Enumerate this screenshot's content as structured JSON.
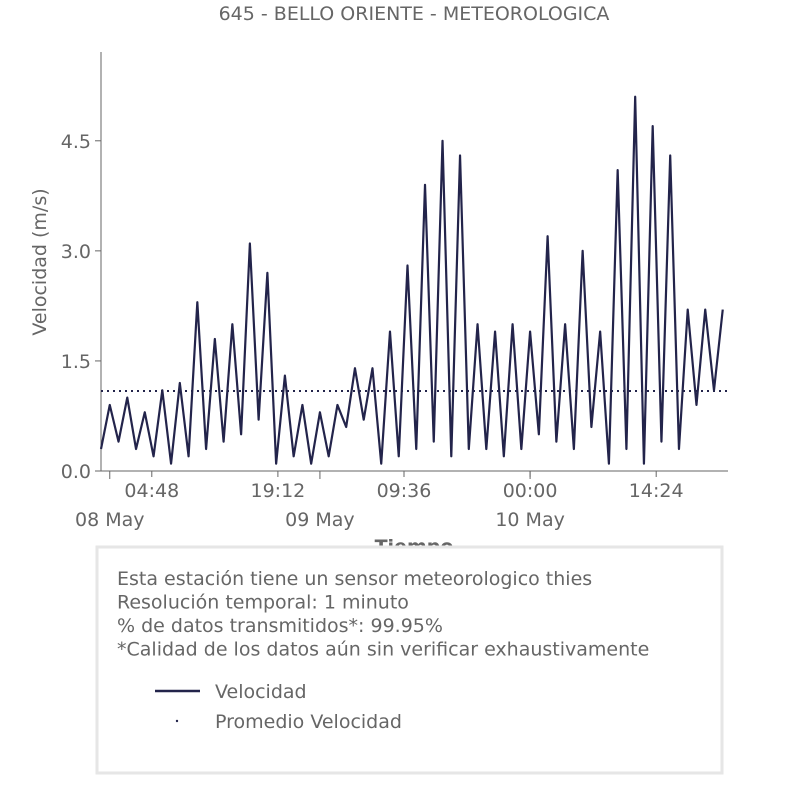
{
  "chart_data": {
    "type": "line",
    "title": "645 - BELLO ORIENTE - METEOROLOGICA",
    "xlabel": "Tiempo",
    "ylabel": "Velocidad (m/s)",
    "x": [
      "07 May 23:00",
      "08 May 00:00",
      "08 May 01:00",
      "08 May 02:00",
      "08 May 03:00",
      "08 May 04:00",
      "08 May 05:00",
      "08 May 06:00",
      "08 May 07:00",
      "08 May 08:00",
      "08 May 09:00",
      "08 May 10:00",
      "08 May 11:00",
      "08 May 12:00",
      "08 May 13:00",
      "08 May 14:00",
      "08 May 15:00",
      "08 May 16:00",
      "08 May 17:00",
      "08 May 18:00",
      "08 May 19:00",
      "08 May 20:00",
      "08 May 21:00",
      "08 May 22:00",
      "08 May 23:00",
      "09 May 00:00",
      "09 May 01:00",
      "09 May 02:00",
      "09 May 03:00",
      "09 May 04:00",
      "09 May 05:00",
      "09 May 06:00",
      "09 May 07:00",
      "09 May 08:00",
      "09 May 09:00",
      "09 May 10:00",
      "09 May 11:00",
      "09 May 12:00",
      "09 May 13:00",
      "09 May 14:00",
      "09 May 15:00",
      "09 May 16:00",
      "09 May 17:00",
      "09 May 18:00",
      "09 May 19:00",
      "09 May 20:00",
      "09 May 21:00",
      "09 May 22:00",
      "09 May 23:00",
      "10 May 00:00",
      "10 May 01:00",
      "10 May 02:00",
      "10 May 03:00",
      "10 May 04:00",
      "10 May 05:00",
      "10 May 06:00",
      "10 May 07:00",
      "10 May 08:00",
      "10 May 09:00",
      "10 May 10:00",
      "10 May 11:00",
      "10 May 12:00",
      "10 May 13:00",
      "10 May 14:00",
      "10 May 15:00",
      "10 May 16:00",
      "10 May 17:00",
      "10 May 18:00",
      "10 May 19:00",
      "10 May 20:00",
      "10 May 21:00",
      "10 May 22:00"
    ],
    "series": [
      {
        "name": "Velocidad",
        "color": "#23244b",
        "values": [
          0.3,
          0.9,
          0.4,
          1.0,
          0.3,
          0.8,
          0.2,
          1.1,
          0.1,
          1.2,
          0.2,
          2.3,
          0.3,
          1.8,
          0.4,
          2.0,
          0.5,
          3.1,
          0.7,
          2.7,
          0.1,
          1.3,
          0.2,
          0.9,
          0.1,
          0.8,
          0.2,
          0.9,
          0.6,
          1.4,
          0.7,
          1.4,
          0.1,
          1.9,
          0.2,
          2.8,
          0.3,
          3.9,
          0.4,
          4.5,
          0.2,
          4.3,
          0.3,
          2.0,
          0.3,
          1.9,
          0.2,
          2.0,
          0.3,
          1.9,
          0.5,
          3.2,
          0.4,
          2.0,
          0.3,
          3.0,
          0.6,
          1.9,
          0.1,
          4.1,
          0.3,
          5.1,
          0.1,
          4.7,
          0.4,
          4.3,
          0.3,
          2.2,
          0.9,
          2.2,
          1.1,
          2.2
        ]
      }
    ],
    "mean_line": {
      "name": "Promedio Velocidad",
      "value": 1.09,
      "color": "#23244b"
    },
    "xlim": [
      "07 May 23:00",
      "10 May 22:36"
    ],
    "xticks": [
      {
        "value": "08 May 04:48",
        "label": "04:48"
      },
      {
        "value": "08 May 19:12",
        "label": "19:12"
      },
      {
        "value": "09 May 09:36",
        "label": "09:36"
      },
      {
        "value": "10 May 00:00",
        "label": "00:00"
      },
      {
        "value": "10 May 14:24",
        "label": "14:24"
      }
    ],
    "xticks_dates": [
      {
        "value": "08 May 00:00",
        "label": "08 May"
      },
      {
        "value": "09 May 00:00",
        "label": "09 May"
      },
      {
        "value": "10 May 00:00",
        "label": "10 May"
      }
    ],
    "ylim": [
      0,
      5.71
    ],
    "yticks": [
      {
        "value": 0,
        "label": "0.0"
      },
      1.5,
      {
        "value": 3,
        "label": "3.0"
      },
      4.5
    ],
    "notes": [
      "Esta estación tiene un sensor meteorologico thies",
      "Resolución temporal: 1 minuto",
      "% de datos transmitidos*: 99.95%",
      "*Calidad de los datos aún sin verificar exhaustivamente"
    ]
  }
}
